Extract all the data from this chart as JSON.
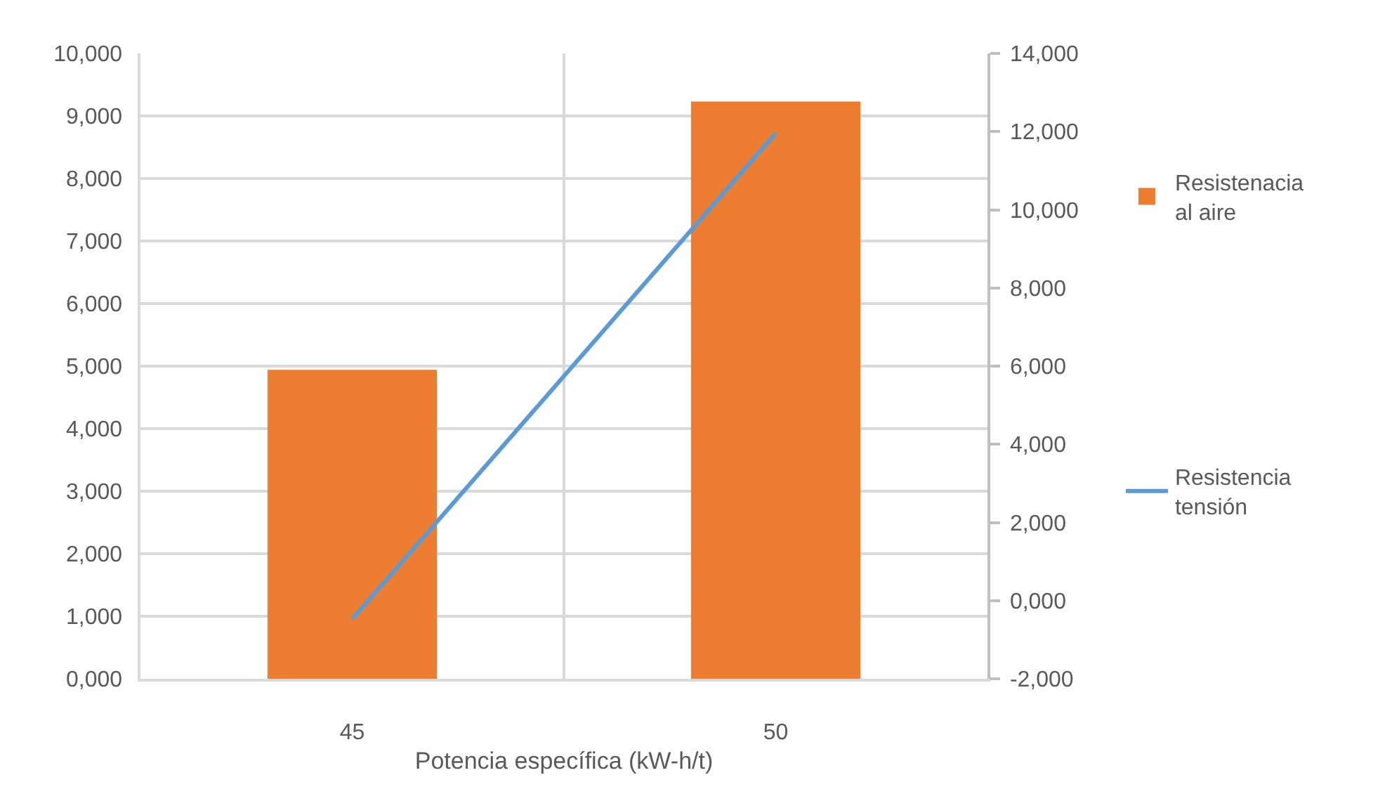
{
  "chart_data": {
    "type": "bar",
    "xlabel": "Potencia específica (kW-h/t)",
    "categories": [
      "45",
      "50"
    ],
    "series": [
      {
        "name": "Resistenacia al aire",
        "color": "#ed7d31",
        "values": [
          4.94,
          9.23
        ]
      },
      {
        "name": "Resistencia tensión",
        "type": "line",
        "axis": "y2",
        "color": "#5b9bd5",
        "values": [
          -0.47,
          11.96
        ]
      }
    ],
    "ylim": [
      0,
      10
    ],
    "yticks": [
      {
        "value": 0,
        "label": "0,000"
      },
      {
        "value": 1,
        "label": "1,000"
      },
      {
        "value": 2,
        "label": "2,000"
      },
      {
        "value": 3,
        "label": "3,000"
      },
      {
        "value": 4,
        "label": "4,000"
      },
      {
        "value": 5,
        "label": "5,000"
      },
      {
        "value": 6,
        "label": "6,000"
      },
      {
        "value": 7,
        "label": "7,000"
      },
      {
        "value": 8,
        "label": "8,000"
      },
      {
        "value": 9,
        "label": "9,000"
      },
      {
        "value": 10,
        "label": "10,000"
      }
    ],
    "y2lim": [
      -2,
      14
    ],
    "y2ticks": [
      {
        "value": -2,
        "label": "-2,000"
      },
      {
        "value": 0,
        "label": "0,000"
      },
      {
        "value": 2,
        "label": "2,000"
      },
      {
        "value": 4,
        "label": "4,000"
      },
      {
        "value": 6,
        "label": "6,000"
      },
      {
        "value": 8,
        "label": "8,000"
      },
      {
        "value": 10,
        "label": "10,000"
      },
      {
        "value": 12,
        "label": "12,000"
      },
      {
        "value": 14,
        "label": "14,000"
      }
    ],
    "grid": true,
    "legend": "right",
    "marker": "none"
  }
}
